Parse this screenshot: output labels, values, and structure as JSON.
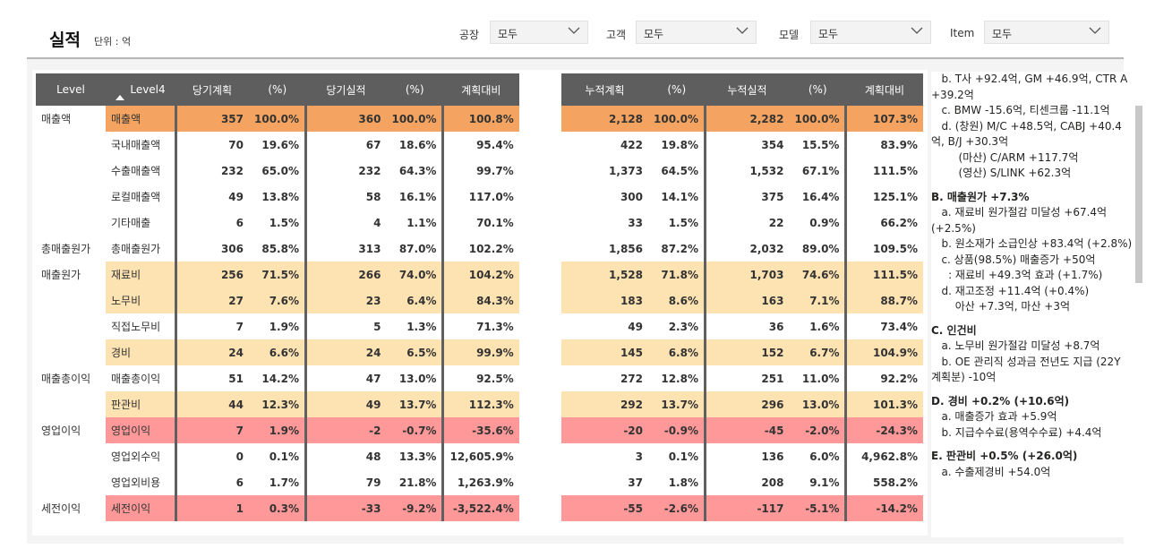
{
  "header": {
    "title": "실적",
    "unit": "단위 :   억"
  },
  "filters": [
    {
      "label": "공장",
      "value": "모두"
    },
    {
      "label": "고객",
      "value": "모두"
    },
    {
      "label": "모델",
      "value": "모두"
    },
    {
      "label": "Item",
      "value": "모두"
    }
  ],
  "left_table": {
    "columns": [
      "Level",
      "Level4",
      "당기계획",
      "(%)",
      "당기실적",
      "(%)",
      "계획대비"
    ],
    "rows": [
      {
        "level": "매출액",
        "level4": "매출액",
        "plan": "357",
        "plan_pct": "100.0%",
        "actual": "360",
        "actual_pct": "100.0%",
        "vs": "100.8%",
        "hl": "orange"
      },
      {
        "level": "",
        "level4": "국내매출액",
        "plan": "70",
        "plan_pct": "19.6%",
        "actual": "67",
        "actual_pct": "18.6%",
        "vs": "95.4%",
        "hl": ""
      },
      {
        "level": "",
        "level4": "수출매출액",
        "plan": "232",
        "plan_pct": "65.0%",
        "actual": "232",
        "actual_pct": "64.3%",
        "vs": "99.7%",
        "hl": ""
      },
      {
        "level": "",
        "level4": "로컬매출액",
        "plan": "49",
        "plan_pct": "13.8%",
        "actual": "58",
        "actual_pct": "16.1%",
        "vs": "117.0%",
        "hl": ""
      },
      {
        "level": "",
        "level4": "기타매출",
        "plan": "6",
        "plan_pct": "1.5%",
        "actual": "4",
        "actual_pct": "1.1%",
        "vs": "70.1%",
        "hl": ""
      },
      {
        "level": "총매출원가",
        "level4": "총매출원가",
        "plan": "306",
        "plan_pct": "85.8%",
        "actual": "313",
        "actual_pct": "87.0%",
        "vs": "102.2%",
        "hl": ""
      },
      {
        "level": "매출원가",
        "level4": "재료비",
        "plan": "256",
        "plan_pct": "71.5%",
        "actual": "266",
        "actual_pct": "74.0%",
        "vs": "104.2%",
        "hl": "light"
      },
      {
        "level": "",
        "level4": "노무비",
        "plan": "27",
        "plan_pct": "7.6%",
        "actual": "23",
        "actual_pct": "6.4%",
        "vs": "84.3%",
        "hl": "light"
      },
      {
        "level": "",
        "level4": "직접노무비",
        "plan": "7",
        "plan_pct": "1.9%",
        "actual": "5",
        "actual_pct": "1.3%",
        "vs": "71.3%",
        "hl": ""
      },
      {
        "level": "",
        "level4": "경비",
        "plan": "24",
        "plan_pct": "6.6%",
        "actual": "24",
        "actual_pct": "6.5%",
        "vs": "99.9%",
        "hl": "light"
      },
      {
        "level": "매출총이익",
        "level4": "매출총이익",
        "plan": "51",
        "plan_pct": "14.2%",
        "actual": "47",
        "actual_pct": "13.0%",
        "vs": "92.5%",
        "hl": ""
      },
      {
        "level": "",
        "level4": "판관비",
        "plan": "44",
        "plan_pct": "12.3%",
        "actual": "49",
        "actual_pct": "13.7%",
        "vs": "112.3%",
        "hl": "light"
      },
      {
        "level": "영업이익",
        "level4": "영업이익",
        "plan": "7",
        "plan_pct": "1.9%",
        "actual": "-2",
        "actual_pct": "-0.7%",
        "vs": "-35.6%",
        "hl": "red"
      },
      {
        "level": "",
        "level4": "영업외수익",
        "plan": "0",
        "plan_pct": "0.1%",
        "actual": "48",
        "actual_pct": "13.3%",
        "vs": "12,605.9%",
        "hl": ""
      },
      {
        "level": "",
        "level4": "영업외비용",
        "plan": "6",
        "plan_pct": "1.7%",
        "actual": "79",
        "actual_pct": "21.8%",
        "vs": "1,263.9%",
        "hl": ""
      },
      {
        "level": "세전이익",
        "level4": "세전이익",
        "plan": "1",
        "plan_pct": "0.3%",
        "actual": "-33",
        "actual_pct": "-9.2%",
        "vs": "-3,522.4%",
        "hl": "red"
      }
    ]
  },
  "right_table": {
    "columns": [
      "누적계획",
      "(%)",
      "누적실적",
      "(%)",
      "계획대비"
    ],
    "rows": [
      {
        "plan": "2,128",
        "plan_pct": "100.0%",
        "actual": "2,282",
        "actual_pct": "100.0%",
        "vs": "107.3%",
        "hl": "orange"
      },
      {
        "plan": "422",
        "plan_pct": "19.8%",
        "actual": "354",
        "actual_pct": "15.5%",
        "vs": "83.9%",
        "hl": ""
      },
      {
        "plan": "1,373",
        "plan_pct": "64.5%",
        "actual": "1,532",
        "actual_pct": "67.1%",
        "vs": "111.5%",
        "hl": ""
      },
      {
        "plan": "300",
        "plan_pct": "14.1%",
        "actual": "375",
        "actual_pct": "16.4%",
        "vs": "125.1%",
        "hl": ""
      },
      {
        "plan": "33",
        "plan_pct": "1.5%",
        "actual": "22",
        "actual_pct": "0.9%",
        "vs": "66.2%",
        "hl": ""
      },
      {
        "plan": "1,856",
        "plan_pct": "87.2%",
        "actual": "2,032",
        "actual_pct": "89.0%",
        "vs": "109.5%",
        "hl": ""
      },
      {
        "plan": "1,528",
        "plan_pct": "71.8%",
        "actual": "1,703",
        "actual_pct": "74.6%",
        "vs": "111.5%",
        "hl": "light"
      },
      {
        "plan": "183",
        "plan_pct": "8.6%",
        "actual": "163",
        "actual_pct": "7.1%",
        "vs": "88.7%",
        "hl": "light"
      },
      {
        "plan": "49",
        "plan_pct": "2.3%",
        "actual": "36",
        "actual_pct": "1.6%",
        "vs": "73.4%",
        "hl": ""
      },
      {
        "plan": "145",
        "plan_pct": "6.8%",
        "actual": "152",
        "actual_pct": "6.7%",
        "vs": "104.9%",
        "hl": "light"
      },
      {
        "plan": "272",
        "plan_pct": "12.8%",
        "actual": "251",
        "actual_pct": "11.0%",
        "vs": "92.2%",
        "hl": ""
      },
      {
        "plan": "292",
        "plan_pct": "13.7%",
        "actual": "296",
        "actual_pct": "13.0%",
        "vs": "101.3%",
        "hl": "light"
      },
      {
        "plan": "-20",
        "plan_pct": "-0.9%",
        "actual": "-45",
        "actual_pct": "-2.0%",
        "vs": "-24.3%",
        "hl": "red"
      },
      {
        "plan": "3",
        "plan_pct": "0.1%",
        "actual": "136",
        "actual_pct": "6.0%",
        "vs": "4,962.8%",
        "hl": ""
      },
      {
        "plan": "37",
        "plan_pct": "1.8%",
        "actual": "208",
        "actual_pct": "9.1%",
        "vs": "558.2%",
        "hl": ""
      },
      {
        "plan": "-55",
        "plan_pct": "-2.6%",
        "actual": "-117",
        "actual_pct": "-5.1%",
        "vs": "-14.2%",
        "hl": "red"
      }
    ]
  },
  "notes": [
    {
      "text": "   b. T사 +92.4억, GM +46.9억, CTR A +39.2억",
      "heading": false
    },
    {
      "text": "   c. BMW -15.6억, 티센크룹 -11.1억",
      "heading": false
    },
    {
      "text": "   d. (창원) M/C +48.5억, CABJ +40.4억, B/J +30.3억",
      "heading": false
    },
    {
      "text": "        (마산) C/ARM +117.7억",
      "heading": false
    },
    {
      "text": "        (영산) S/LINK +62.3억",
      "heading": false
    },
    {
      "text": "B. 매출원가 +7.3%",
      "heading": true
    },
    {
      "text": "   a. 재료비 원가절감 미달성 +67.4억 (+2.5%)",
      "heading": false
    },
    {
      "text": "   b. 원소재가 소급인상 +83.4억 (+2.8%)",
      "heading": false
    },
    {
      "text": "   c. 상품(98.5%) 매출증가 +50억",
      "heading": false
    },
    {
      "text": "     : 재료비 +49.3억 효과 (+1.7%)",
      "heading": false
    },
    {
      "text": "   d. 재고조정 +11.4억 (+0.4%)",
      "heading": false
    },
    {
      "text": "       아산 +7.3억, 마산 +3억",
      "heading": false
    },
    {
      "text": "C. 인건비",
      "heading": true
    },
    {
      "text": "   a. 노무비 원가절감 미달성 +8.7억",
      "heading": false
    },
    {
      "text": "   b. OE 관리직 성과금 전년도 지급 (22Y 계획분) -10억",
      "heading": false
    },
    {
      "text": "D. 경비 +0.2% (+10.6억)",
      "heading": true
    },
    {
      "text": "   a. 매출증가 효과 +5.9억",
      "heading": false
    },
    {
      "text": "   b. 지급수수료(용역수수료) +4.4억",
      "heading": false
    },
    {
      "text": "E. 판관비 +0.5% (+26.0억)",
      "heading": true
    },
    {
      "text": "   a. 수출제경비 +54.0억",
      "heading": false
    }
  ]
}
